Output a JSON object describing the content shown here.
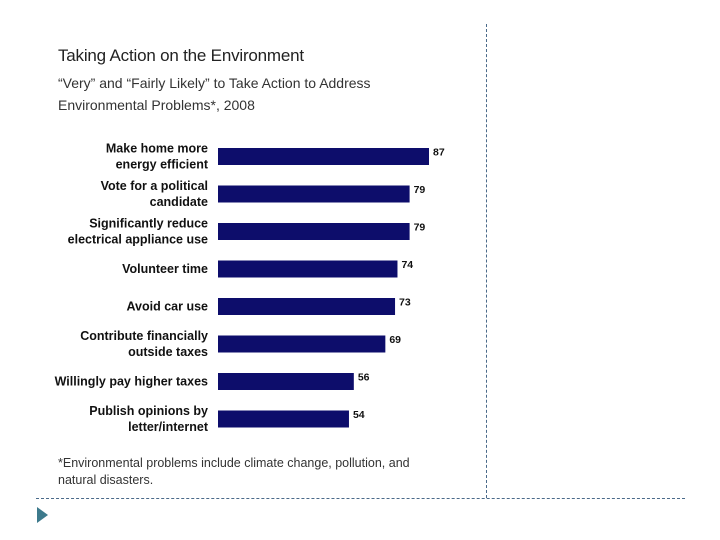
{
  "chart_data": {
    "type": "bar",
    "orientation": "horizontal",
    "title": "Taking Action on the Environment",
    "subtitle": "“Very” and “Fairly Likely” to Take Action to Address Environmental Problems*, 2008",
    "categories": [
      [
        "Make home more",
        "energy efficient"
      ],
      [
        "Vote for a political",
        "candidate"
      ],
      [
        "Significantly reduce",
        "electrical appliance use"
      ],
      [
        "Volunteer time"
      ],
      [
        "Avoid car use"
      ],
      [
        "Contribute financially",
        "outside taxes"
      ],
      [
        "Willingly pay higher taxes"
      ],
      [
        "Publish opinions by",
        "letter/internet"
      ]
    ],
    "values": [
      87,
      79,
      79,
      74,
      73,
      69,
      56,
      54
    ],
    "xlim": [
      0,
      87
    ],
    "bar_color": "#0d0d6b",
    "footnote": "*Environmental problems include climate change, pollution, and natural disasters."
  }
}
